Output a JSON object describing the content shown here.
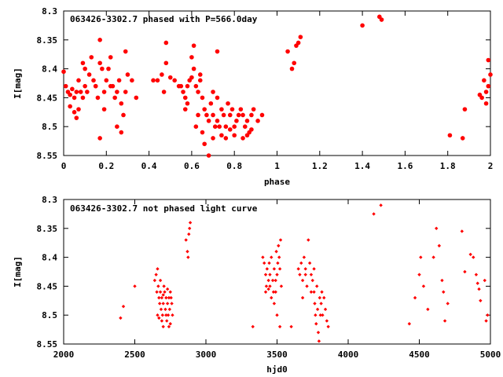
{
  "chart_data": [
    {
      "type": "scatter",
      "title": "063426-3302.7 phased with P=566.0day",
      "xlabel": "phase",
      "ylabel": "I[mag]",
      "xlim": [
        0,
        2
      ],
      "ylim": [
        8.55,
        8.3
      ],
      "y_inverted": true,
      "grid": false,
      "legend": "none",
      "color": "#ff0000",
      "marker": "filled-circle",
      "xticks": [
        "0",
        "0.2",
        "0.4",
        "0.6",
        "0.8",
        "1",
        "1.2",
        "1.4",
        "1.6",
        "1.8",
        "2"
      ],
      "yticks": [
        "8.3",
        "8.35",
        "8.4",
        "8.45",
        "8.5",
        "8.55"
      ],
      "points": [
        [
          0.0,
          8.405
        ],
        [
          0.01,
          8.43
        ],
        [
          0.02,
          8.44
        ],
        [
          0.03,
          8.445
        ],
        [
          0.03,
          8.465
        ],
        [
          0.04,
          8.435
        ],
        [
          0.05,
          8.45
        ],
        [
          0.05,
          8.475
        ],
        [
          0.06,
          8.44
        ],
        [
          0.07,
          8.42
        ],
        [
          0.07,
          8.47
        ],
        [
          0.08,
          8.44
        ],
        [
          0.09,
          8.39
        ],
        [
          0.09,
          8.45
        ],
        [
          0.1,
          8.4
        ],
        [
          0.1,
          8.43
        ],
        [
          0.11,
          8.44
        ],
        [
          0.12,
          8.41
        ],
        [
          0.13,
          8.38
        ],
        [
          0.14,
          8.42
        ],
        [
          0.15,
          8.43
        ],
        [
          0.16,
          8.45
        ],
        [
          0.17,
          8.35
        ],
        [
          0.17,
          8.39
        ],
        [
          0.18,
          8.4
        ],
        [
          0.19,
          8.44
        ],
        [
          0.2,
          8.42
        ],
        [
          0.21,
          8.4
        ],
        [
          0.22,
          8.38
        ],
        [
          0.23,
          8.43
        ],
        [
          0.24,
          8.45
        ],
        [
          0.25,
          8.44
        ],
        [
          0.26,
          8.42
        ],
        [
          0.27,
          8.46
        ],
        [
          0.28,
          8.48
        ],
        [
          0.29,
          8.44
        ],
        [
          0.3,
          8.41
        ],
        [
          0.32,
          8.42
        ],
        [
          0.17,
          8.52
        ],
        [
          0.06,
          8.485
        ],
        [
          0.15,
          8.43
        ],
        [
          0.19,
          8.47
        ],
        [
          0.22,
          8.43
        ],
        [
          0.25,
          8.5
        ],
        [
          0.27,
          8.51
        ],
        [
          0.29,
          8.37
        ],
        [
          0.34,
          8.45
        ],
        [
          0.42,
          8.42
        ],
        [
          0.44,
          8.42
        ],
        [
          0.46,
          8.41
        ],
        [
          0.47,
          8.44
        ],
        [
          0.48,
          8.355
        ],
        [
          0.48,
          8.39
        ],
        [
          0.5,
          8.415
        ],
        [
          0.52,
          8.42
        ],
        [
          0.54,
          8.43
        ],
        [
          0.55,
          8.43
        ],
        [
          0.56,
          8.44
        ],
        [
          0.57,
          8.45
        ],
        [
          0.58,
          8.46
        ],
        [
          0.59,
          8.42
        ],
        [
          0.6,
          8.415
        ],
        [
          0.6,
          8.38
        ],
        [
          0.61,
          8.4
        ],
        [
          0.62,
          8.43
        ],
        [
          0.63,
          8.44
        ],
        [
          0.64,
          8.42
        ],
        [
          0.65,
          8.45
        ],
        [
          0.66,
          8.47
        ],
        [
          0.67,
          8.48
        ],
        [
          0.68,
          8.49
        ],
        [
          0.69,
          8.46
        ],
        [
          0.7,
          8.44
        ],
        [
          0.7,
          8.48
        ],
        [
          0.71,
          8.5
        ],
        [
          0.72,
          8.45
        ],
        [
          0.72,
          8.49
        ],
        [
          0.73,
          8.5
        ],
        [
          0.74,
          8.47
        ],
        [
          0.75,
          8.48
        ],
        [
          0.76,
          8.5
        ],
        [
          0.77,
          8.46
        ],
        [
          0.78,
          8.48
        ],
        [
          0.79,
          8.47
        ],
        [
          0.8,
          8.5
        ],
        [
          0.81,
          8.49
        ],
        [
          0.82,
          8.48
        ],
        [
          0.83,
          8.47
        ],
        [
          0.84,
          8.48
        ],
        [
          0.85,
          8.5
        ],
        [
          0.86,
          8.49
        ],
        [
          0.87,
          8.51
        ],
        [
          0.88,
          8.48
        ],
        [
          0.89,
          8.47
        ],
        [
          0.91,
          8.49
        ],
        [
          0.93,
          8.48
        ],
        [
          0.72,
          8.37
        ],
        [
          0.65,
          8.51
        ],
        [
          0.66,
          8.53
        ],
        [
          0.68,
          8.55
        ],
        [
          0.7,
          8.52
        ],
        [
          0.74,
          8.515
        ],
        [
          0.76,
          8.52
        ],
        [
          0.78,
          8.505
        ],
        [
          0.8,
          8.515
        ],
        [
          0.84,
          8.52
        ],
        [
          0.86,
          8.515
        ],
        [
          0.88,
          8.505
        ],
        [
          0.63,
          8.48
        ],
        [
          0.62,
          8.5
        ],
        [
          0.57,
          8.47
        ],
        [
          0.58,
          8.43
        ],
        [
          0.61,
          8.36
        ],
        [
          0.64,
          8.41
        ],
        [
          1.05,
          8.37
        ],
        [
          1.07,
          8.4
        ],
        [
          1.08,
          8.39
        ],
        [
          1.09,
          8.36
        ],
        [
          1.1,
          8.355
        ],
        [
          1.11,
          8.345
        ],
        [
          1.4,
          8.325
        ],
        [
          1.48,
          8.31
        ],
        [
          1.49,
          8.315
        ],
        [
          1.81,
          8.515
        ],
        [
          1.87,
          8.52
        ],
        [
          1.88,
          8.47
        ],
        [
          1.95,
          8.445
        ],
        [
          1.96,
          8.45
        ],
        [
          1.97,
          8.42
        ],
        [
          1.98,
          8.44
        ],
        [
          1.98,
          8.46
        ],
        [
          1.99,
          8.385
        ],
        [
          1.99,
          8.43
        ],
        [
          2.0,
          8.41
        ]
      ]
    },
    {
      "type": "scatter",
      "title": "063426-3302.7 not phased light curve",
      "xlabel": "hjd0",
      "ylabel": "I[mag]",
      "xlim": [
        2000,
        5000
      ],
      "ylim": [
        8.55,
        8.3
      ],
      "y_inverted": true,
      "grid": false,
      "legend": "none",
      "color": "#ff0000",
      "marker": "small-diamond",
      "xticks": [
        "2000",
        "2500",
        "3000",
        "3500",
        "4000",
        "4500",
        "5000"
      ],
      "yticks": [
        "8.3",
        "8.35",
        "8.4",
        "8.45",
        "8.5",
        "8.55"
      ],
      "points": [
        [
          2400,
          8.505
        ],
        [
          2420,
          8.485
        ],
        [
          2500,
          8.45
        ],
        [
          2640,
          8.44
        ],
        [
          2650,
          8.43
        ],
        [
          2655,
          8.46
        ],
        [
          2660,
          8.42
        ],
        [
          2665,
          8.45
        ],
        [
          2670,
          8.47
        ],
        [
          2675,
          8.48
        ],
        [
          2680,
          8.44
        ],
        [
          2685,
          8.49
        ],
        [
          2690,
          8.47
        ],
        [
          2695,
          8.5
        ],
        [
          2700,
          8.48
        ],
        [
          2705,
          8.45
        ],
        [
          2710,
          8.46
        ],
        [
          2715,
          8.49
        ],
        [
          2720,
          8.47
        ],
        [
          2725,
          8.51
        ],
        [
          2730,
          8.48
        ],
        [
          2735,
          8.5
        ],
        [
          2740,
          8.47
        ],
        [
          2745,
          8.49
        ],
        [
          2750,
          8.515
        ],
        [
          2755,
          8.47
        ],
        [
          2760,
          8.48
        ],
        [
          2765,
          8.5
        ],
        [
          2660,
          8.5
        ],
        [
          2670,
          8.505
        ],
        [
          2690,
          8.51
        ],
        [
          2700,
          8.52
        ],
        [
          2720,
          8.5
        ],
        [
          2740,
          8.52
        ],
        [
          2680,
          8.46
        ],
        [
          2700,
          8.465
        ],
        [
          2730,
          8.455
        ],
        [
          2750,
          8.46
        ],
        [
          2860,
          8.37
        ],
        [
          2870,
          8.39
        ],
        [
          2875,
          8.4
        ],
        [
          2880,
          8.36
        ],
        [
          2885,
          8.35
        ],
        [
          2890,
          8.34
        ],
        [
          3330,
          8.52
        ],
        [
          3400,
          8.4
        ],
        [
          3410,
          8.41
        ],
        [
          3420,
          8.43
        ],
        [
          3425,
          8.45
        ],
        [
          3430,
          8.42
        ],
        [
          3440,
          8.44
        ],
        [
          3445,
          8.41
        ],
        [
          3450,
          8.43
        ],
        [
          3460,
          8.4
        ],
        [
          3470,
          8.44
        ],
        [
          3475,
          8.46
        ],
        [
          3480,
          8.42
        ],
        [
          3490,
          8.44
        ],
        [
          3495,
          8.39
        ],
        [
          3500,
          8.43
        ],
        [
          3505,
          8.41
        ],
        [
          3510,
          8.38
        ],
        [
          3515,
          8.4
        ],
        [
          3520,
          8.42
        ],
        [
          3525,
          8.37
        ],
        [
          3530,
          8.45
        ],
        [
          3440,
          8.455
        ],
        [
          3460,
          8.47
        ],
        [
          3480,
          8.48
        ],
        [
          3500,
          8.5
        ],
        [
          3520,
          8.52
        ],
        [
          3420,
          8.46
        ],
        [
          3450,
          8.45
        ],
        [
          3490,
          8.46
        ],
        [
          3600,
          8.52
        ],
        [
          3650,
          8.42
        ],
        [
          3660,
          8.43
        ],
        [
          3670,
          8.41
        ],
        [
          3680,
          8.44
        ],
        [
          3690,
          8.4
        ],
        [
          3700,
          8.42
        ],
        [
          3710,
          8.45
        ],
        [
          3720,
          8.37
        ],
        [
          3730,
          8.41
        ],
        [
          3740,
          8.43
        ],
        [
          3750,
          8.44
        ],
        [
          3760,
          8.46
        ],
        [
          3765,
          8.48
        ],
        [
          3770,
          8.5
        ],
        [
          3775,
          8.515
        ],
        [
          3780,
          8.45
        ],
        [
          3785,
          8.49
        ],
        [
          3790,
          8.53
        ],
        [
          3795,
          8.545
        ],
        [
          3800,
          8.47
        ],
        [
          3805,
          8.5
        ],
        [
          3810,
          8.48
        ],
        [
          3815,
          8.46
        ],
        [
          3820,
          8.5
        ],
        [
          3830,
          8.47
        ],
        [
          3840,
          8.49
        ],
        [
          3850,
          8.51
        ],
        [
          3860,
          8.52
        ],
        [
          3700,
          8.43
        ],
        [
          3740,
          8.46
        ],
        [
          3760,
          8.42
        ],
        [
          3680,
          8.47
        ],
        [
          4180,
          8.325
        ],
        [
          4230,
          8.31
        ],
        [
          4430,
          8.515
        ],
        [
          4470,
          8.47
        ],
        [
          4500,
          8.43
        ],
        [
          4510,
          8.4
        ],
        [
          4530,
          8.45
        ],
        [
          4560,
          8.49
        ],
        [
          4600,
          8.4
        ],
        [
          4620,
          8.35
        ],
        [
          4640,
          8.38
        ],
        [
          4660,
          8.44
        ],
        [
          4670,
          8.46
        ],
        [
          4680,
          8.51
        ],
        [
          4700,
          8.48
        ],
        [
          4800,
          8.355
        ],
        [
          4820,
          8.425
        ],
        [
          4860,
          8.395
        ],
        [
          4880,
          8.4
        ],
        [
          4900,
          8.43
        ],
        [
          4910,
          8.445
        ],
        [
          4920,
          8.455
        ],
        [
          4930,
          8.475
        ],
        [
          4960,
          8.44
        ],
        [
          4970,
          8.51
        ],
        [
          4980,
          8.5
        ]
      ]
    }
  ]
}
